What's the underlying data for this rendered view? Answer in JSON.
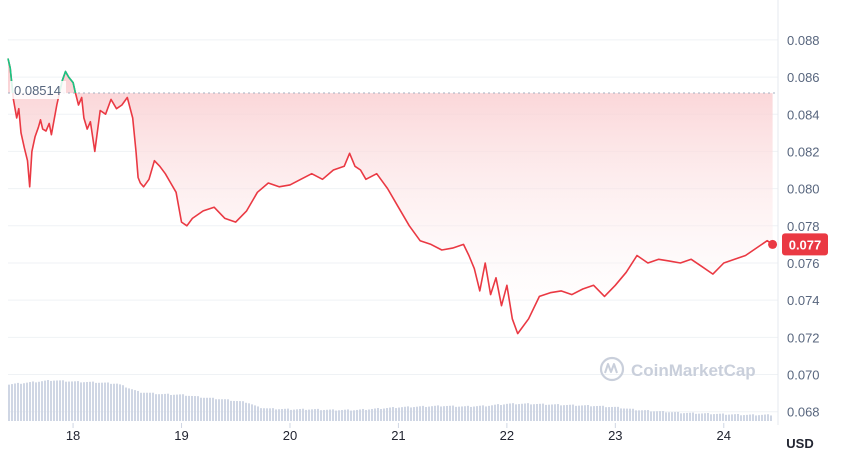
{
  "chart_data": {
    "type": "area",
    "currency": "USD",
    "x_unit": "day of month",
    "xlim": [
      17.4,
      24.5
    ],
    "ylim": [
      0.0675,
      0.0895
    ],
    "y_ticks": [
      "0.088",
      "0.086",
      "0.084",
      "0.082",
      "0.080",
      "0.078",
      "0.076",
      "0.074",
      "0.072",
      "0.070",
      "0.068"
    ],
    "y_tick_values": [
      0.088,
      0.086,
      0.084,
      0.082,
      0.08,
      0.078,
      0.076,
      0.074,
      0.072,
      0.07,
      0.068
    ],
    "x_ticks": [
      "18",
      "19",
      "20",
      "21",
      "22",
      "23",
      "24"
    ],
    "x_tick_values": [
      18,
      19,
      20,
      21,
      22,
      23,
      24
    ],
    "reference_price": 0.08514,
    "reference_label": "0.08514",
    "current_price": 0.077,
    "current_label": "0.077",
    "grid": true,
    "colors": {
      "up": "#16c784",
      "down": "#ea3943",
      "fill_top": "#f9c9cc",
      "volume": "#cfd6e4",
      "axis_text": "#58667e",
      "grid": "#eff2f5",
      "reference_line": "#a6b0c3"
    },
    "price_series": {
      "x": [
        17.4,
        17.42,
        17.45,
        17.48,
        17.5,
        17.52,
        17.55,
        17.58,
        17.6,
        17.62,
        17.65,
        17.68,
        17.7,
        17.72,
        17.75,
        17.78,
        17.8,
        17.85,
        17.9,
        17.93,
        17.96,
        18.0,
        18.02,
        18.05,
        18.08,
        18.1,
        18.13,
        18.16,
        18.2,
        18.25,
        18.3,
        18.35,
        18.4,
        18.45,
        18.5,
        18.55,
        18.58,
        18.6,
        18.62,
        18.65,
        18.7,
        18.75,
        18.8,
        18.85,
        18.9,
        18.95,
        19.0,
        19.05,
        19.1,
        19.2,
        19.3,
        19.4,
        19.5,
        19.6,
        19.7,
        19.8,
        19.9,
        20.0,
        20.1,
        20.2,
        20.3,
        20.4,
        20.5,
        20.55,
        20.6,
        20.65,
        20.7,
        20.8,
        20.9,
        21.0,
        21.1,
        21.2,
        21.3,
        21.4,
        21.5,
        21.6,
        21.65,
        21.7,
        21.75,
        21.8,
        21.85,
        21.9,
        21.95,
        22.0,
        22.05,
        22.1,
        22.2,
        22.3,
        22.4,
        22.5,
        22.6,
        22.7,
        22.8,
        22.9,
        23.0,
        23.1,
        23.2,
        23.3,
        23.4,
        23.5,
        23.6,
        23.7,
        23.8,
        23.9,
        24.0,
        24.1,
        24.2,
        24.3,
        24.4,
        24.45
      ],
      "y": [
        0.087,
        0.0865,
        0.0848,
        0.0838,
        0.0843,
        0.083,
        0.0822,
        0.0815,
        0.0801,
        0.082,
        0.0828,
        0.0833,
        0.0837,
        0.0832,
        0.0831,
        0.0835,
        0.0829,
        0.0845,
        0.0858,
        0.0863,
        0.086,
        0.0857,
        0.0852,
        0.0845,
        0.0849,
        0.0838,
        0.0832,
        0.0836,
        0.082,
        0.0842,
        0.084,
        0.0848,
        0.0843,
        0.0845,
        0.0849,
        0.0838,
        0.082,
        0.0806,
        0.0803,
        0.0801,
        0.0805,
        0.0815,
        0.0812,
        0.0808,
        0.0803,
        0.0798,
        0.0782,
        0.078,
        0.0784,
        0.0788,
        0.079,
        0.0784,
        0.0782,
        0.0788,
        0.0798,
        0.0803,
        0.0801,
        0.0802,
        0.0805,
        0.0808,
        0.0805,
        0.081,
        0.0812,
        0.0819,
        0.0812,
        0.081,
        0.0805,
        0.0808,
        0.08,
        0.079,
        0.078,
        0.0772,
        0.077,
        0.0767,
        0.0768,
        0.077,
        0.0764,
        0.0757,
        0.0745,
        0.076,
        0.0743,
        0.0752,
        0.0737,
        0.0748,
        0.073,
        0.0722,
        0.073,
        0.0742,
        0.0744,
        0.0745,
        0.0743,
        0.0746,
        0.0748,
        0.0742,
        0.0748,
        0.0755,
        0.0764,
        0.076,
        0.0762,
        0.0761,
        0.076,
        0.0762,
        0.0758,
        0.0754,
        0.076,
        0.0762,
        0.0764,
        0.0768,
        0.0772,
        0.077
      ]
    },
    "volume_series": {
      "x": [
        17.4,
        17.6,
        17.8,
        18.0,
        18.2,
        18.4,
        18.6,
        18.8,
        19.0,
        19.2,
        19.4,
        19.6,
        19.7,
        19.8,
        20.0,
        20.2,
        20.4,
        20.6,
        20.8,
        21.0,
        21.2,
        21.4,
        21.6,
        21.8,
        22.0,
        22.2,
        22.4,
        22.6,
        22.8,
        23.0,
        23.2,
        23.4,
        23.6,
        23.8,
        24.0,
        24.2,
        24.45
      ],
      "level": [
        0.52,
        0.55,
        0.58,
        0.56,
        0.55,
        0.53,
        0.41,
        0.38,
        0.37,
        0.33,
        0.3,
        0.26,
        0.19,
        0.17,
        0.16,
        0.16,
        0.15,
        0.15,
        0.17,
        0.19,
        0.2,
        0.21,
        0.2,
        0.21,
        0.24,
        0.24,
        0.23,
        0.22,
        0.21,
        0.19,
        0.15,
        0.13,
        0.11,
        0.1,
        0.09,
        0.08,
        0.08
      ]
    }
  },
  "watermark": {
    "brand": "CoinMarketCap"
  },
  "axis": {
    "currency_label": "USD"
  }
}
